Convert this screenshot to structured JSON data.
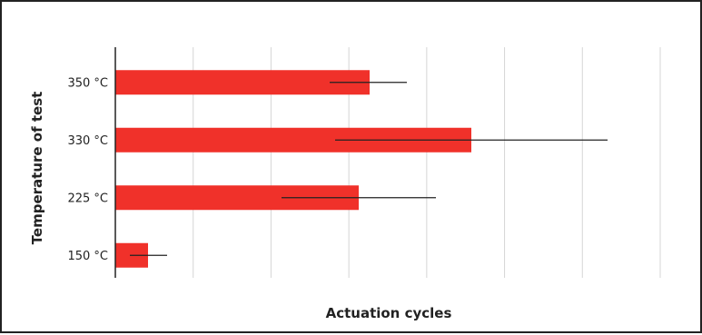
{
  "chart_data": {
    "type": "bar",
    "orientation": "horizontal",
    "title": "",
    "xlabel": "Actuation cycles",
    "ylabel": "Temperature of test",
    "categories": [
      "350 °C",
      "330 °C",
      "225 °C",
      "150 °C"
    ],
    "values": [
      280,
      392,
      268,
      36
    ],
    "error_low": [
      236,
      242,
      183,
      16
    ],
    "error_high": [
      321,
      542,
      353,
      57
    ],
    "xlim": [
      0,
      600
    ],
    "grid": true,
    "grid_lines": 7,
    "legend": "none",
    "colors": {
      "bar": "#f0312a",
      "error_bar": "#222222",
      "grid": "#d6d6d6",
      "axis": "#222222",
      "frame": "#222222"
    }
  }
}
